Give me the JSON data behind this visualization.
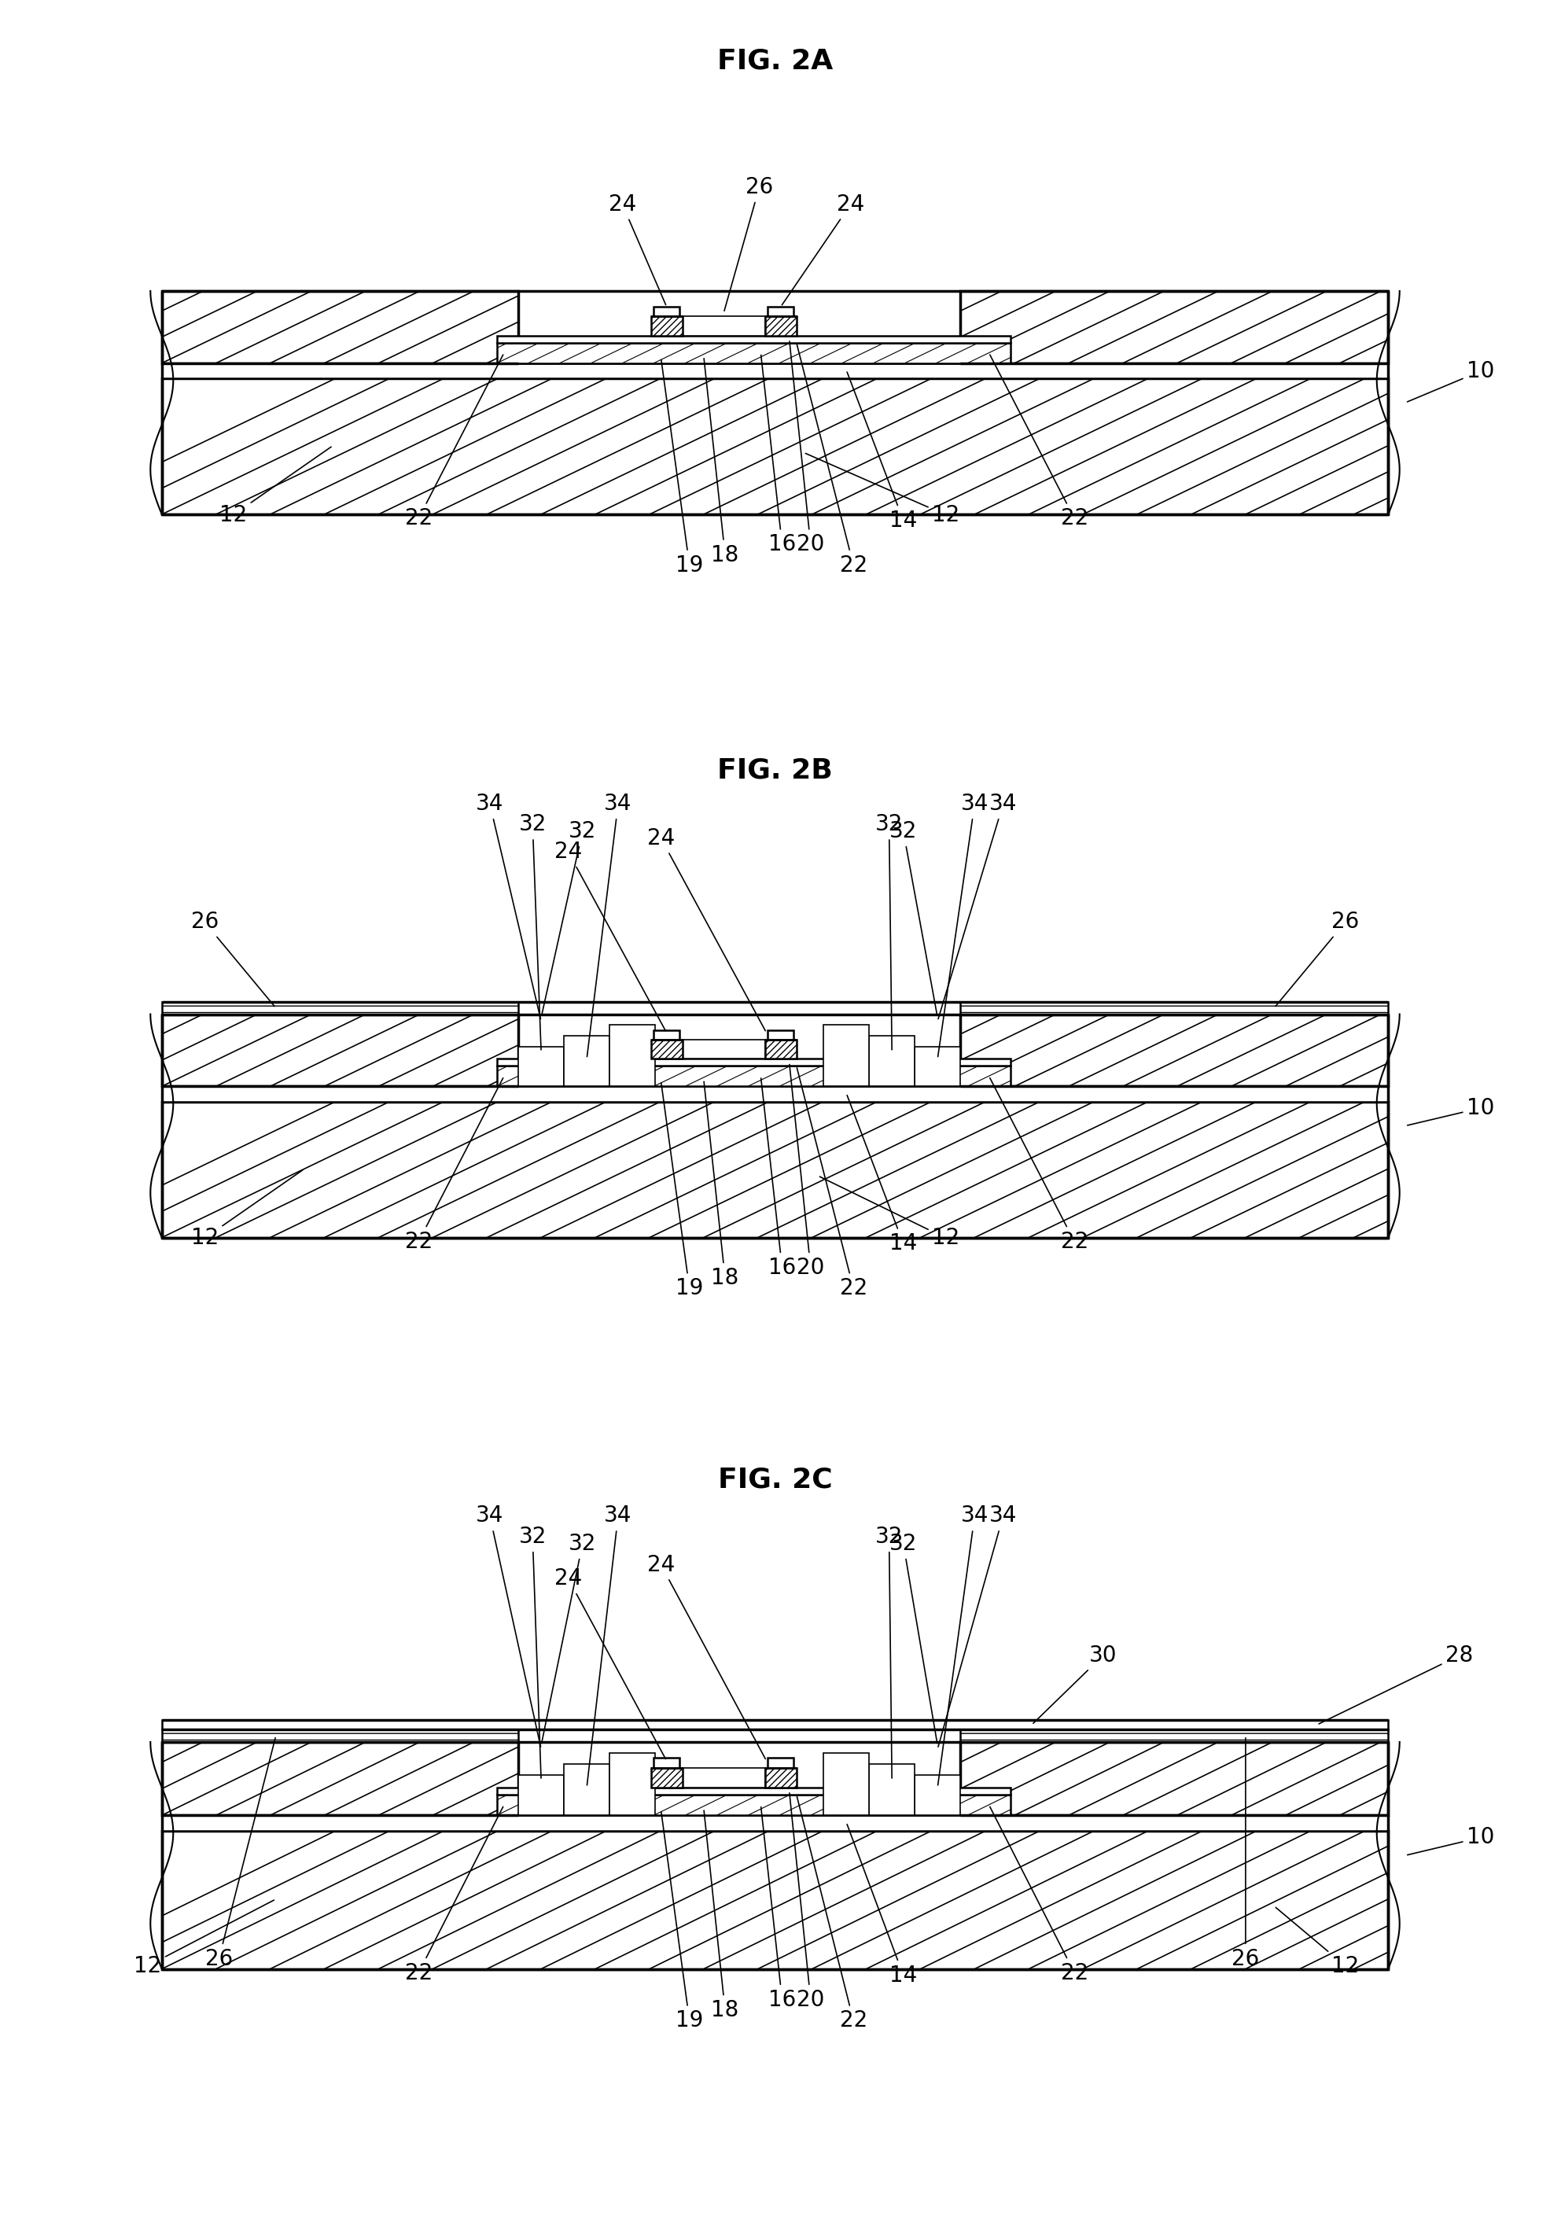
{
  "fig_title_2a": "FIG. 2A",
  "fig_title_2b": "FIG. 2B",
  "fig_title_2c": "FIG. 2C",
  "bg_color": "#ffffff",
  "title_fontsize": 26,
  "label_fontsize": 20,
  "lw_thick": 2.5,
  "lw_mid": 1.8,
  "lw_thin": 1.2
}
